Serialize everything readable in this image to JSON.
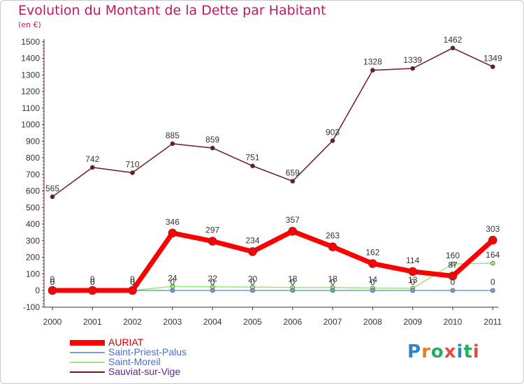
{
  "title": "Evolution du Montant de la Dette par Habitant",
  "unit": "(en €)",
  "logo": {
    "text": "Proxiti",
    "letters": [
      "P",
      "r",
      "o",
      "x",
      "i",
      "t",
      "i"
    ],
    "colors": [
      "#2e86c1",
      "#e67e22",
      "#27ae60",
      "#e74c3c",
      "#2e86c1",
      "#27ae60",
      "#e74c3c"
    ]
  },
  "chart_data": {
    "type": "line",
    "x": [
      "2000",
      "2001",
      "2002",
      "2003",
      "2004",
      "2005",
      "2006",
      "2007",
      "2008",
      "2009",
      "2010",
      "2011"
    ],
    "ylim": [
      -100,
      1500
    ],
    "yticks": [
      "-100",
      "0",
      "100",
      "200",
      "300",
      "400",
      "500",
      "600",
      "700",
      "800",
      "900",
      "1000",
      "1100",
      "1200",
      "1300",
      "1400",
      "1500"
    ],
    "ytick_values": [
      -100,
      0,
      100,
      200,
      300,
      400,
      500,
      600,
      700,
      800,
      900,
      1000,
      1100,
      1200,
      1300,
      1400,
      1500
    ],
    "grid": false,
    "legend_position": "bottom-left",
    "series": [
      {
        "name": "Sauviat-sur-Vige",
        "color": "#6d1b1f",
        "values": [
          565,
          742,
          710,
          885,
          859,
          751,
          659,
          903,
          1328,
          1339,
          1462,
          1349
        ],
        "labels": [
          "565",
          "742",
          "710",
          "885",
          "859",
          "751",
          "659",
          "903",
          "1328",
          "1339",
          "1462",
          "1349"
        ]
      },
      {
        "name": "Saint-Moreil",
        "color": "#99e67a",
        "values": [
          0,
          0,
          0,
          24,
          22,
          20,
          18,
          18,
          14,
          13,
          160,
          164
        ],
        "labels": [
          "0",
          "0",
          "0",
          "24",
          "22",
          "20",
          "18",
          "18",
          "14",
          "13",
          "160",
          "164"
        ]
      },
      {
        "name": "Saint-Priest-Palus",
        "color": "#6fa0cf",
        "values": [
          0,
          0,
          0,
          0,
          0,
          0,
          0,
          0,
          0,
          0,
          0,
          0
        ],
        "labels": [
          "0",
          "0",
          "0",
          "0",
          "0",
          "0",
          "0",
          "0",
          "0",
          "0",
          "0",
          "0"
        ]
      },
      {
        "name": "AURIAT",
        "color": "#ff0000",
        "values": [
          0,
          0,
          0,
          346,
          297,
          234,
          357,
          263,
          162,
          114,
          87,
          303
        ],
        "labels": [
          "0",
          "0",
          "0",
          "346",
          "297",
          "234",
          "357",
          "263",
          "162",
          "114",
          "87",
          "303"
        ]
      }
    ],
    "legend_order": [
      "AURIAT",
      "Saint-Priest-Palus",
      "Saint-Moreil",
      "Sauviat-sur-Vige"
    ]
  }
}
